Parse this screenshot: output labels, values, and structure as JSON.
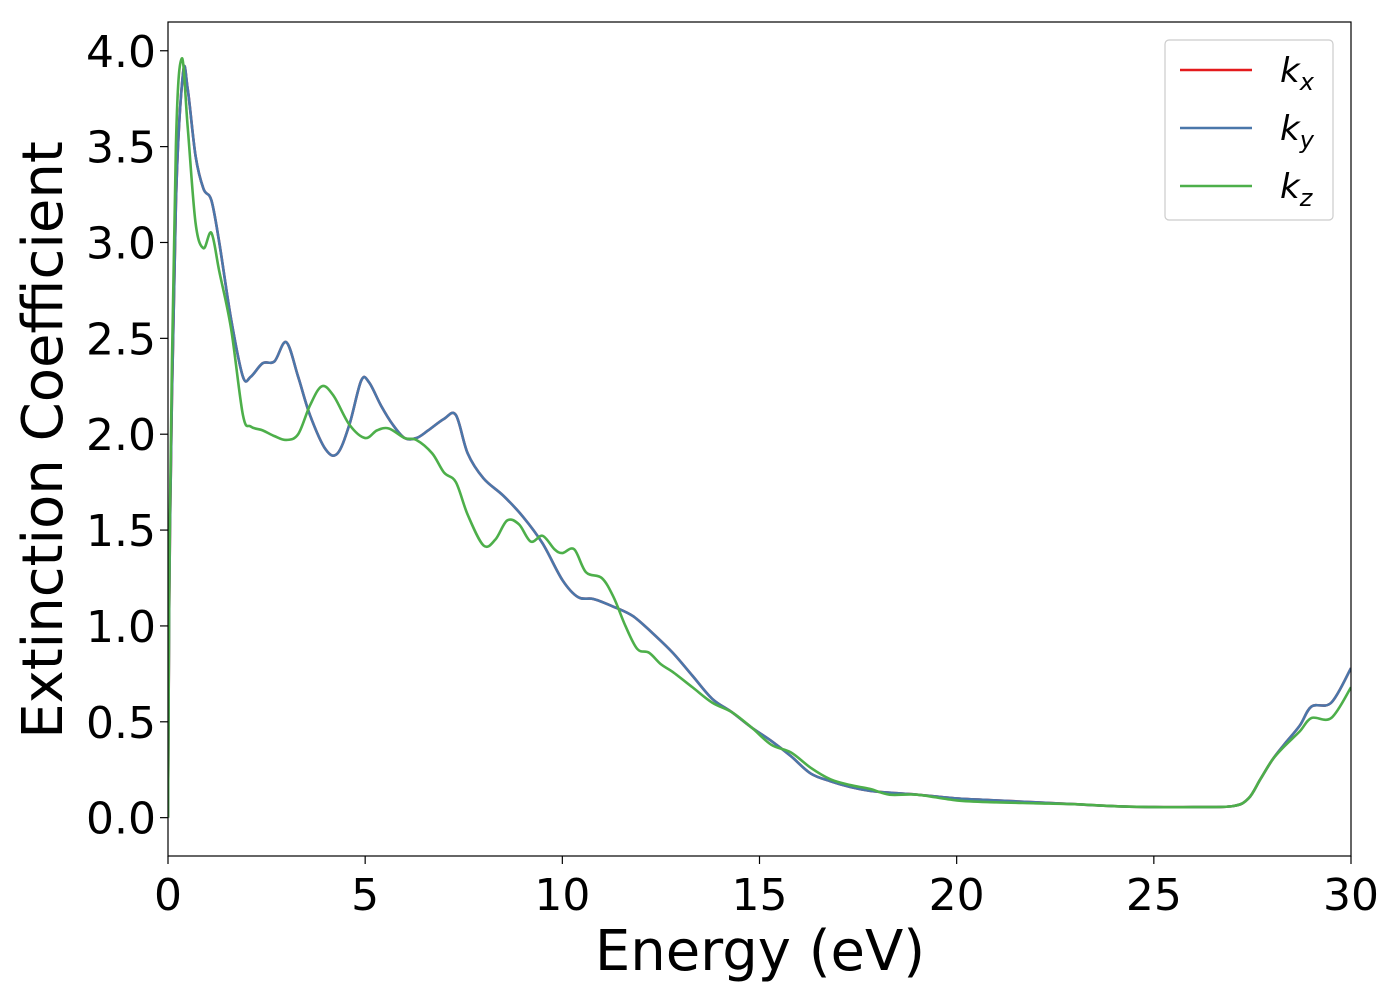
{
  "chart_data": {
    "type": "line",
    "title": "",
    "xlabel": "Energy (eV)",
    "ylabel": "Extinction Coefficient",
    "xlim": [
      0,
      30
    ],
    "ylim": [
      -0.2,
      4.15
    ],
    "xticks": [
      0,
      5,
      10,
      15,
      20,
      25,
      30
    ],
    "xtick_labels": [
      "0",
      "5",
      "10",
      "15",
      "20",
      "25",
      "30"
    ],
    "yticks": [
      0.0,
      0.5,
      1.0,
      1.5,
      2.0,
      2.5,
      3.0,
      3.5,
      4.0
    ],
    "ytick_labels": [
      "0.0",
      "0.5",
      "1.0",
      "1.5",
      "2.0",
      "2.5",
      "3.0",
      "3.5",
      "4.0"
    ],
    "grid": false,
    "legend_position": "top-right",
    "series": [
      {
        "name": "k",
        "subscript": "x",
        "color": "#e41a1c",
        "x": [
          0,
          0.05,
          0.2,
          0.38,
          0.5,
          0.7,
          0.9,
          1.1,
          1.3,
          1.6,
          1.9,
          2.1,
          2.4,
          2.7,
          3.0,
          3.3,
          3.6,
          4.0,
          4.3,
          4.6,
          4.9,
          5.1,
          5.4,
          5.7,
          6.0,
          6.3,
          6.6,
          7.0,
          7.3,
          7.6,
          8.0,
          8.5,
          9.0,
          9.5,
          10.0,
          10.4,
          10.8,
          11.3,
          11.8,
          12.3,
          12.8,
          13.3,
          13.8,
          14.3,
          14.8,
          15.3,
          15.8,
          16.3,
          16.8,
          17.3,
          17.8,
          18.3,
          19.0,
          20.0,
          21.0,
          22.0,
          23.0,
          24.0,
          25.0,
          26.0,
          27.0,
          27.4,
          27.7,
          28.0,
          28.3,
          28.7,
          29.0,
          29.5,
          30.0
        ],
        "y": [
          0.0,
          1.5,
          3.2,
          3.88,
          3.8,
          3.45,
          3.28,
          3.22,
          3.0,
          2.6,
          2.3,
          2.3,
          2.37,
          2.38,
          2.48,
          2.3,
          2.1,
          1.92,
          1.9,
          2.05,
          2.28,
          2.27,
          2.15,
          2.05,
          1.98,
          1.98,
          2.02,
          2.08,
          2.1,
          1.9,
          1.77,
          1.68,
          1.57,
          1.43,
          1.24,
          1.15,
          1.14,
          1.1,
          1.05,
          0.96,
          0.86,
          0.74,
          0.62,
          0.55,
          0.47,
          0.4,
          0.32,
          0.23,
          0.19,
          0.16,
          0.14,
          0.13,
          0.12,
          0.1,
          0.09,
          0.08,
          0.07,
          0.06,
          0.055,
          0.055,
          0.06,
          0.1,
          0.2,
          0.3,
          0.38,
          0.48,
          0.58,
          0.6,
          0.78
        ]
      },
      {
        "name": "k",
        "subscript": "y",
        "color": "#4a77aa",
        "x": [
          0,
          0.05,
          0.2,
          0.38,
          0.5,
          0.7,
          0.9,
          1.1,
          1.3,
          1.6,
          1.9,
          2.1,
          2.4,
          2.7,
          3.0,
          3.3,
          3.6,
          4.0,
          4.3,
          4.6,
          4.9,
          5.1,
          5.4,
          5.7,
          6.0,
          6.3,
          6.6,
          7.0,
          7.3,
          7.6,
          8.0,
          8.5,
          9.0,
          9.5,
          10.0,
          10.4,
          10.8,
          11.3,
          11.8,
          12.3,
          12.8,
          13.3,
          13.8,
          14.3,
          14.8,
          15.3,
          15.8,
          16.3,
          16.8,
          17.3,
          17.8,
          18.3,
          19.0,
          20.0,
          21.0,
          22.0,
          23.0,
          24.0,
          25.0,
          26.0,
          27.0,
          27.4,
          27.7,
          28.0,
          28.3,
          28.7,
          29.0,
          29.5,
          30.0
        ],
        "y": [
          0.0,
          1.5,
          3.2,
          3.88,
          3.8,
          3.45,
          3.28,
          3.22,
          3.0,
          2.6,
          2.3,
          2.3,
          2.37,
          2.38,
          2.48,
          2.3,
          2.1,
          1.92,
          1.9,
          2.05,
          2.28,
          2.27,
          2.15,
          2.05,
          1.98,
          1.98,
          2.02,
          2.08,
          2.1,
          1.9,
          1.77,
          1.68,
          1.57,
          1.43,
          1.24,
          1.15,
          1.14,
          1.1,
          1.05,
          0.96,
          0.86,
          0.74,
          0.62,
          0.55,
          0.47,
          0.4,
          0.32,
          0.23,
          0.19,
          0.16,
          0.14,
          0.13,
          0.12,
          0.1,
          0.09,
          0.08,
          0.07,
          0.06,
          0.055,
          0.055,
          0.06,
          0.1,
          0.2,
          0.3,
          0.38,
          0.48,
          0.58,
          0.6,
          0.78
        ]
      },
      {
        "name": "k",
        "subscript": "z",
        "color": "#4daf4a",
        "x": [
          0,
          0.05,
          0.2,
          0.35,
          0.5,
          0.7,
          0.9,
          1.1,
          1.3,
          1.6,
          1.9,
          2.1,
          2.4,
          2.7,
          3.0,
          3.3,
          3.6,
          3.9,
          4.2,
          4.6,
          5.0,
          5.3,
          5.6,
          6.0,
          6.3,
          6.7,
          7.0,
          7.3,
          7.6,
          8.0,
          8.3,
          8.6,
          8.9,
          9.2,
          9.5,
          9.8,
          10.0,
          10.3,
          10.6,
          11.0,
          11.3,
          11.6,
          11.9,
          12.2,
          12.5,
          12.8,
          13.3,
          13.8,
          14.3,
          14.8,
          15.3,
          15.8,
          16.3,
          16.8,
          17.3,
          17.8,
          18.3,
          19.0,
          20.0,
          21.0,
          22.0,
          23.0,
          24.0,
          25.0,
          26.0,
          27.0,
          27.4,
          27.7,
          28.0,
          28.3,
          28.7,
          29.0,
          29.5,
          30.0
        ],
        "y": [
          0.0,
          1.6,
          3.5,
          3.96,
          3.6,
          3.1,
          2.97,
          3.05,
          2.85,
          2.55,
          2.1,
          2.04,
          2.02,
          1.99,
          1.97,
          2.0,
          2.15,
          2.25,
          2.2,
          2.05,
          1.98,
          2.02,
          2.03,
          1.98,
          1.97,
          1.9,
          1.8,
          1.75,
          1.58,
          1.42,
          1.45,
          1.55,
          1.53,
          1.44,
          1.47,
          1.4,
          1.38,
          1.4,
          1.28,
          1.25,
          1.15,
          1.0,
          0.88,
          0.86,
          0.8,
          0.76,
          0.68,
          0.6,
          0.55,
          0.47,
          0.38,
          0.34,
          0.26,
          0.2,
          0.17,
          0.15,
          0.12,
          0.12,
          0.09,
          0.08,
          0.075,
          0.07,
          0.06,
          0.055,
          0.055,
          0.06,
          0.1,
          0.2,
          0.3,
          0.37,
          0.45,
          0.52,
          0.52,
          0.68
        ]
      }
    ]
  }
}
